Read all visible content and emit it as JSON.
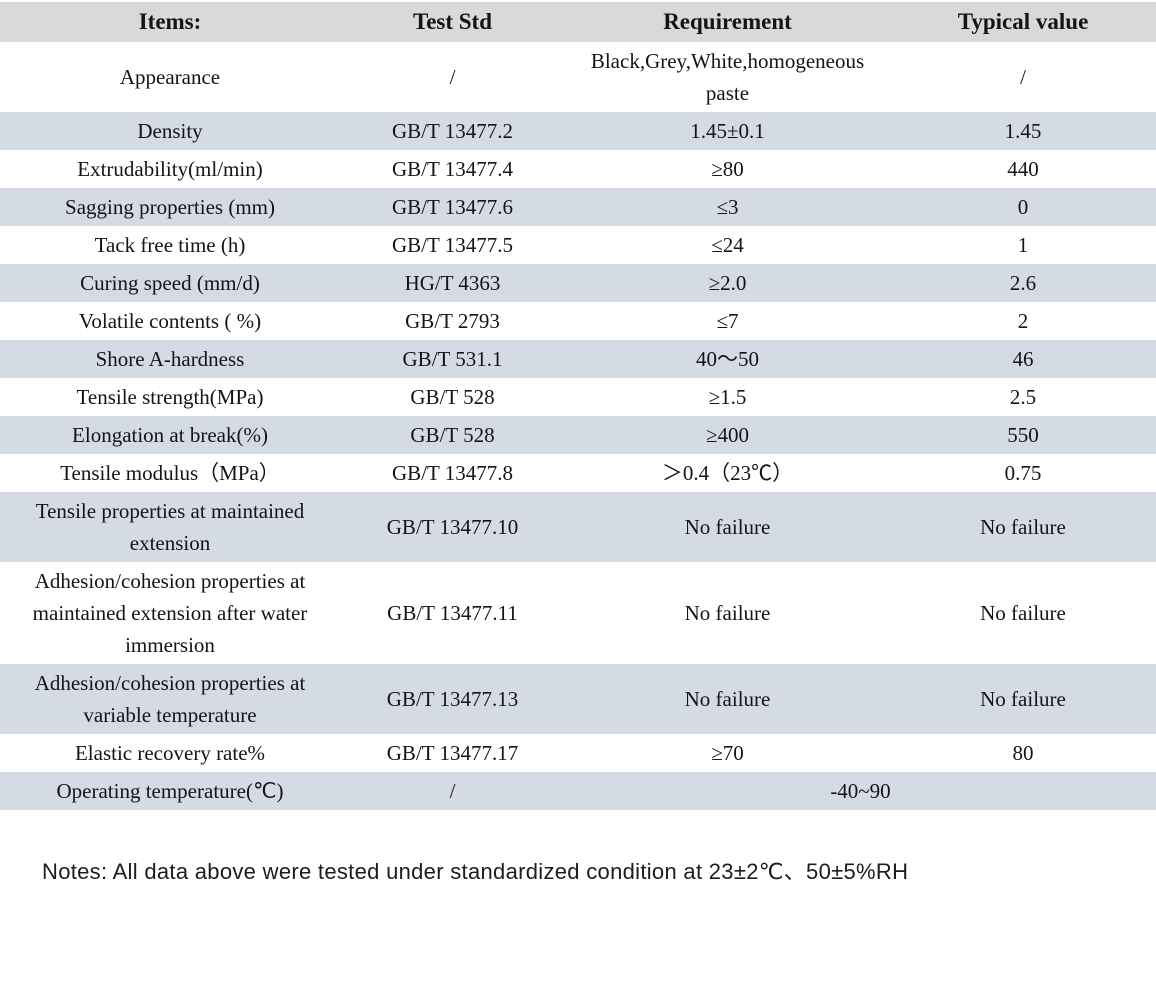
{
  "colors": {
    "header_bg": "#d9d9d9",
    "stripe_bg": "#d4dbe4",
    "row_bg": "#ffffff",
    "text": "#141414"
  },
  "table": {
    "headers": [
      "Items:",
      "Test Std",
      "Requirement",
      "Typical value"
    ],
    "rows": [
      {
        "item": "Appearance",
        "test_std": "/",
        "requirement": "Black,Grey,White,homogeneous paste",
        "typical_value": "/",
        "shaded": false,
        "merged": false
      },
      {
        "item": "Density",
        "test_std": "GB/T 13477.2",
        "requirement": "1.45±0.1",
        "typical_value": "1.45",
        "shaded": true,
        "merged": false
      },
      {
        "item": "Extrudability(ml/min)",
        "test_std": "GB/T 13477.4",
        "requirement": "≥80",
        "typical_value": "440",
        "shaded": false,
        "merged": false
      },
      {
        "item": "Sagging properties (mm)",
        "test_std": "GB/T 13477.6",
        "requirement": "≤3",
        "typical_value": "0",
        "shaded": true,
        "merged": false
      },
      {
        "item": "Tack free time (h)",
        "test_std": "GB/T 13477.5",
        "requirement": "≤24",
        "typical_value": "1",
        "shaded": false,
        "merged": false
      },
      {
        "item": "Curing speed (mm/d)",
        "test_std": "HG/T 4363",
        "requirement": "≥2.0",
        "typical_value": "2.6",
        "shaded": true,
        "merged": false
      },
      {
        "item": "Volatile contents ( %)",
        "test_std": "GB/T 2793",
        "requirement": "≤7",
        "typical_value": "2",
        "shaded": false,
        "merged": false
      },
      {
        "item": "Shore A-hardness",
        "test_std": "GB/T 531.1",
        "requirement": "40～50",
        "typical_value": "46",
        "shaded": true,
        "merged": false
      },
      {
        "item": "Tensile strength(MPa)",
        "test_std": "GB/T 528",
        "requirement": "≥1.5",
        "typical_value": "2.5",
        "shaded": false,
        "merged": false
      },
      {
        "item": "Elongation at break(%)",
        "test_std": "GB/T 528",
        "requirement": "≥400",
        "typical_value": "550",
        "shaded": true,
        "merged": false
      },
      {
        "item": "Tensile modulus（MPa）",
        "test_std": "GB/T 13477.8",
        "requirement": "＞0.4（23℃）",
        "typical_value": "0.75",
        "shaded": false,
        "merged": false
      },
      {
        "item": "Tensile properties at maintained extension",
        "test_std": "GB/T 13477.10",
        "requirement": "No failure",
        "typical_value": "No failure",
        "shaded": true,
        "merged": false
      },
      {
        "item": "Adhesion/cohesion properties at maintained extension after water immersion",
        "test_std": "GB/T 13477.11",
        "requirement": "No failure",
        "typical_value": "No failure",
        "shaded": false,
        "merged": false
      },
      {
        "item": "Adhesion/cohesion properties at variable temperature",
        "test_std": "GB/T 13477.13",
        "requirement": "No failure",
        "typical_value": "No failure",
        "shaded": true,
        "merged": false
      },
      {
        "item": "Elastic recovery rate%",
        "test_std": "GB/T 13477.17",
        "requirement": "≥70",
        "typical_value": "80",
        "shaded": false,
        "merged": false
      },
      {
        "item": "Operating temperature(℃)",
        "test_std": "/",
        "requirement": "-40~90",
        "typical_value": null,
        "shaded": true,
        "merged": true
      }
    ]
  },
  "notes": {
    "text": "Notes: All data above were tested under standardized condition at 23±2℃、50±5%RH"
  }
}
